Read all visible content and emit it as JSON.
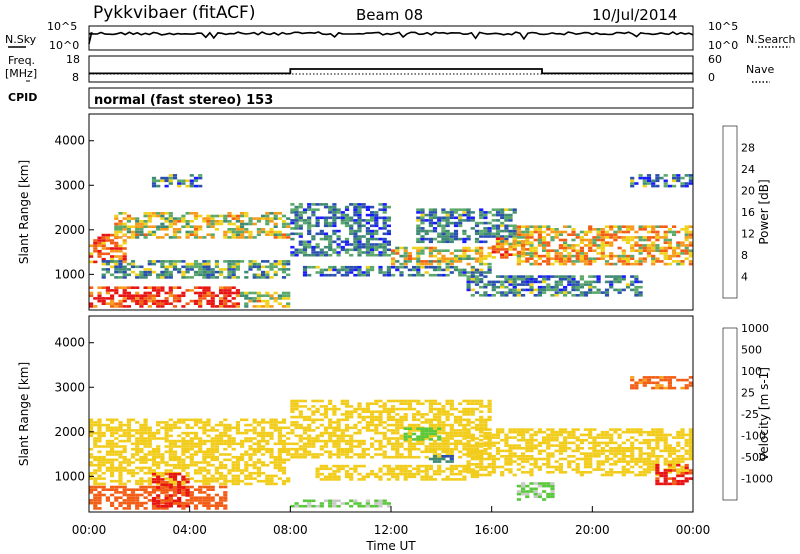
{
  "header": {
    "station": "Pykkvibaer (fitACF)",
    "beam": "Beam 08",
    "date": "10/Jul/2014"
  },
  "left_labels": {
    "nsky": "N.Sky",
    "freq_line1": "Freq.",
    "freq_line2": "[MHz]",
    "cpid": "CPID"
  },
  "right_labels": {
    "nsearch": "N.Search",
    "nave": "Nave"
  },
  "cpid_text": "normal (fast stereo) 153",
  "colors": {
    "power": [
      "#1a1aff",
      "#2a4fb0",
      "#3f8a72",
      "#5aa86a",
      "#f0d21a",
      "#f59a1a",
      "#f25c14",
      "#e81414"
    ],
    "velocity": [
      "#e81414",
      "#f25c14",
      "#f5a21a",
      "#f2cc1a",
      "#c8c8c8",
      "#5ac83c",
      "#3f8a72",
      "#2a4fb0"
    ]
  },
  "chart_data": [
    {
      "type": "line",
      "name": "noise",
      "ylabel_left": "N.Sky",
      "ylabel_right": "N.Search",
      "y_ticks": [
        "10^5",
        "10^0"
      ],
      "x_range_hours": [
        0,
        24
      ],
      "level": "near 10^5 throughout"
    },
    {
      "type": "line",
      "name": "frequency-nave",
      "ylabel_left": "Freq. [MHz]",
      "ylabel_right": "Nave",
      "y_ticks_left": [
        "18",
        "8"
      ],
      "y_ticks_right": [
        "60",
        "0"
      ],
      "freq_segments": [
        {
          "x": [
            0.0,
            8.0
          ],
          "y": 11
        },
        {
          "x": [
            8.0,
            18.0
          ],
          "y": 13
        },
        {
          "x": [
            18.0,
            24.0
          ],
          "y": 11
        }
      ],
      "nave_level": 15
    },
    {
      "type": "heatmap",
      "name": "power",
      "xlabel": "Time UT",
      "ylabel": "Slant Range [km]",
      "x_ticks": [
        "00:00",
        "04:00",
        "08:00",
        "12:00",
        "16:00",
        "20:00",
        "00:00"
      ],
      "x_range_hours": [
        0,
        24
      ],
      "y_ticks": [
        1000,
        2000,
        3000,
        4000
      ],
      "ylim": [
        200,
        4600
      ],
      "colorbar_label": "Power [dB]",
      "colorbar_ticks": [
        4,
        8,
        12,
        16,
        20,
        24,
        28
      ],
      "blobs": [
        {
          "t": [
            0.0,
            6.0
          ],
          "r": [
            250,
            700
          ],
          "level": 0.9
        },
        {
          "t": [
            6.0,
            8.0
          ],
          "r": [
            250,
            600
          ],
          "level": 0.55
        },
        {
          "t": [
            0.0,
            1.5
          ],
          "r": [
            1250,
            1900
          ],
          "level": 0.8
        },
        {
          "t": [
            1.0,
            8.0
          ],
          "r": [
            1800,
            2400
          ],
          "level": 0.55
        },
        {
          "t": [
            0.5,
            8.0
          ],
          "r": [
            900,
            1300
          ],
          "level": 0.35
        },
        {
          "t": [
            2.5,
            4.5
          ],
          "r": [
            2950,
            3250
          ],
          "level": 0.3
        },
        {
          "t": [
            8.0,
            12.0
          ],
          "r": [
            1400,
            2600
          ],
          "level": 0.25
        },
        {
          "t": [
            8.5,
            16.0
          ],
          "r": [
            950,
            1200
          ],
          "level": 0.3
        },
        {
          "t": [
            12.0,
            16.0
          ],
          "r": [
            1200,
            1600
          ],
          "level": 0.55
        },
        {
          "t": [
            13.0,
            17.0
          ],
          "r": [
            1700,
            2500
          ],
          "level": 0.3
        },
        {
          "t": [
            16.0,
            17.5
          ],
          "r": [
            1350,
            1850
          ],
          "level": 0.7
        },
        {
          "t": [
            17.0,
            24.0
          ],
          "r": [
            1200,
            2100
          ],
          "level": 0.65
        },
        {
          "t": [
            15.0,
            22.0
          ],
          "r": [
            500,
            1000
          ],
          "level": 0.3
        },
        {
          "t": [
            21.5,
            24.0
          ],
          "r": [
            2950,
            3250
          ],
          "level": 0.3
        }
      ]
    },
    {
      "type": "heatmap",
      "name": "velocity",
      "xlabel": "Time UT",
      "ylabel": "Slant Range [km]",
      "x_ticks": [
        "00:00",
        "04:00",
        "08:00",
        "12:00",
        "16:00",
        "20:00",
        "00:00"
      ],
      "x_range_hours": [
        0,
        24
      ],
      "y_ticks": [
        1000,
        2000,
        3000,
        4000
      ],
      "ylim": [
        200,
        4600
      ],
      "colorbar_label": "Velocity [m s-1]",
      "colorbar_ticks": [
        -1000,
        -500,
        -100,
        -25,
        25,
        100,
        500,
        1000
      ],
      "blobs": [
        {
          "t": [
            0.0,
            8.0
          ],
          "r": [
            800,
            2300
          ],
          "vel": 0
        },
        {
          "t": [
            0.0,
            5.5
          ],
          "r": [
            250,
            800
          ],
          "vel": -300
        },
        {
          "t": [
            2.5,
            4.0
          ],
          "r": [
            300,
            1100
          ],
          "vel": -600
        },
        {
          "t": [
            8.0,
            12.0
          ],
          "r": [
            300,
            500
          ],
          "vel": 120
        },
        {
          "t": [
            8.0,
            16.0
          ],
          "r": [
            1400,
            2700
          ],
          "vel": 0
        },
        {
          "t": [
            9.0,
            15.5
          ],
          "r": [
            900,
            1250
          ],
          "vel": 0
        },
        {
          "t": [
            13.5,
            14.5
          ],
          "r": [
            1300,
            1450
          ],
          "vel": 700
        },
        {
          "t": [
            12.5,
            14.0
          ],
          "r": [
            1800,
            2100
          ],
          "vel": 300
        },
        {
          "t": [
            15.0,
            24.0
          ],
          "r": [
            1000,
            2100
          ],
          "vel": 0
        },
        {
          "t": [
            22.5,
            24.0
          ],
          "r": [
            800,
            1300
          ],
          "vel": -700
        },
        {
          "t": [
            21.5,
            24.0
          ],
          "r": [
            2950,
            3250
          ],
          "vel": -150
        },
        {
          "t": [
            17.0,
            18.5
          ],
          "r": [
            450,
            850
          ],
          "vel": 120
        }
      ]
    }
  ]
}
